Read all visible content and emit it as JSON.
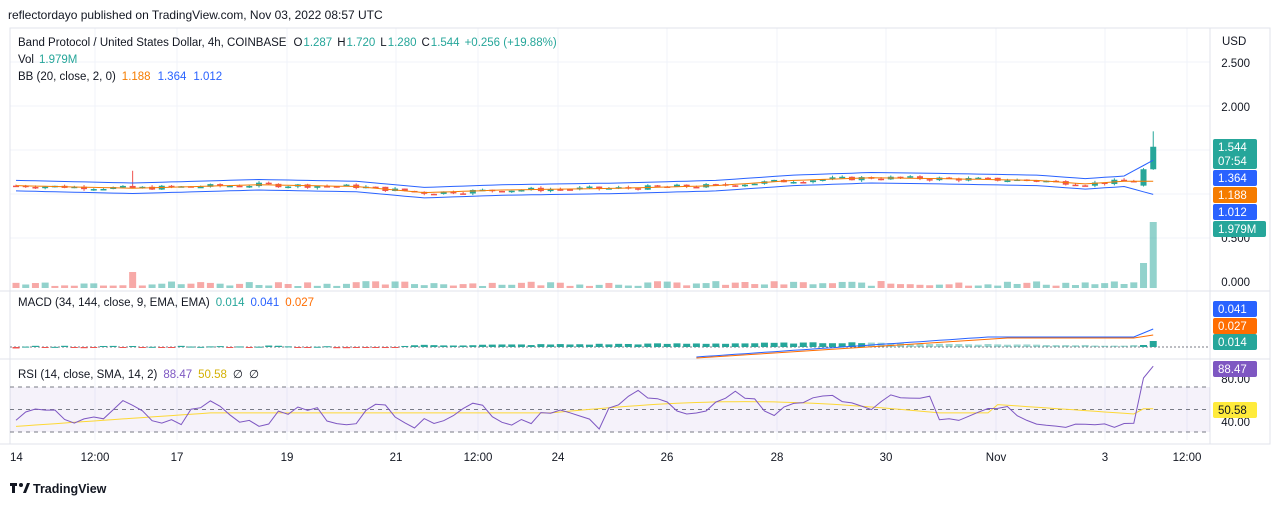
{
  "header": {
    "published": "reflectordayo published on TradingView.com, Nov 03, 2022 08:57 UTC"
  },
  "footer": {
    "brand": "TradingView"
  },
  "colors": {
    "up": "#26a69a",
    "down": "#ef5350",
    "bb_mid": "#f57c00",
    "bb_band": "#2962ff",
    "macd_line": "#2962ff",
    "signal_line": "#ff6d00",
    "rsi": "#7e57c2",
    "rsi_ma": "#fdd835",
    "ohlc_up": "#26a69a"
  },
  "chart_data": {
    "type": "candlestick",
    "legend": {
      "symbol": "Band Protocol / United States Dollar, 4h, COINBASE",
      "o_label": "O",
      "open": "1.287",
      "h_label": "H",
      "high": "1.720",
      "l_label": "L",
      "low": "1.280",
      "c_label": "C",
      "close": "1.544",
      "change": "+0.256 (+19.88%)",
      "vol_label": "Vol",
      "vol": "1.979M",
      "bb_label": "BB (20, close, 2, 0)",
      "bb_mid": "1.188",
      "bb_upper": "1.364",
      "bb_lower": "1.012",
      "macd_label": "MACD (34, 144, close, 9, EMA, EMA)",
      "macd_hist": "0.014",
      "macd": "0.041",
      "macd_signal": "0.027",
      "rsi_label": "RSI (14, close, SMA, 14, 2)",
      "rsi": "88.47",
      "rsi_ma": "50.58",
      "rsi_z1": "∅",
      "rsi_z2": "∅"
    },
    "price_axis": {
      "currency": "USD",
      "ticks": [
        "2.500",
        "2.000",
        "0.500",
        "0.000"
      ],
      "range": [
        0,
        2.7
      ]
    },
    "price_tags": {
      "close": "1.544",
      "countdown": "07:54",
      "bb_upper": "1.364",
      "bb_mid": "1.188",
      "bb_lower": "1.012",
      "volume": "1.979M"
    },
    "macd_tags": {
      "macd": "0.041",
      "signal": "0.027",
      "hist": "0.014"
    },
    "rsi_axis": {
      "ticks": [
        "80.00",
        "40.00"
      ],
      "upper_band": 70,
      "mid_band": 50,
      "lower_band": 30
    },
    "rsi_tags": {
      "rsi": "88.47",
      "ma": "50.58"
    },
    "time_axis": [
      "14",
      "12:00",
      "17",
      "19",
      "21",
      "12:00",
      "24",
      "26",
      "28",
      "30",
      "Nov",
      "3",
      "12:00"
    ]
  }
}
